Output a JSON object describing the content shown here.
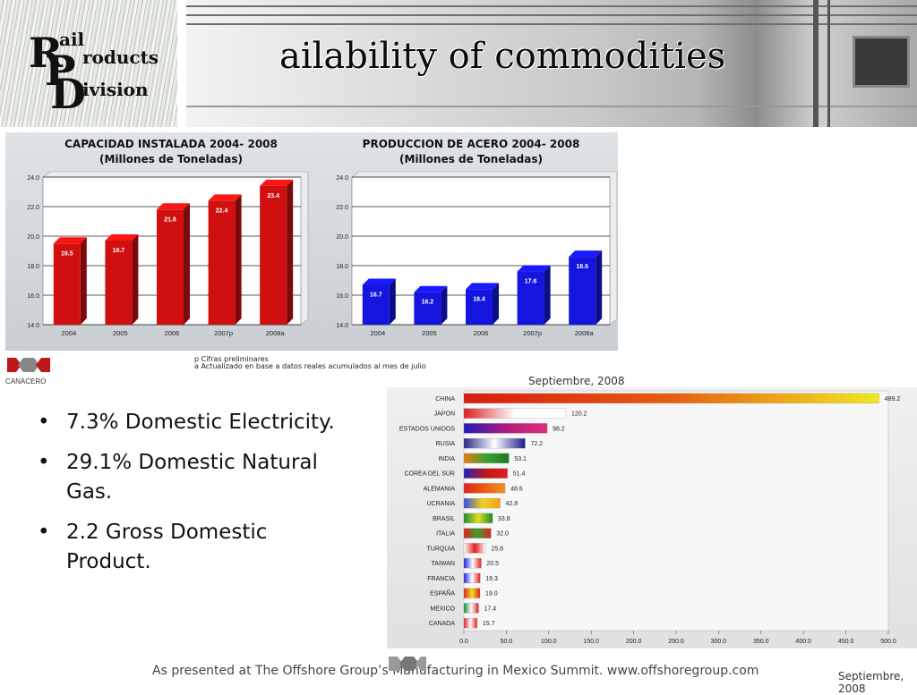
{
  "header": {
    "logo": {
      "r": "R",
      "ail": "ail",
      "p": "P",
      "roducts": "roducts",
      "d": "D",
      "ivision": "ivision"
    },
    "title": "ailability of commodities"
  },
  "bullets": [
    {
      "symbol": "•",
      "text": "7.3% Domestic Electricity."
    },
    {
      "symbol": "•",
      "text": "29.1% Domestic Natural Gas."
    },
    {
      "symbol": "•",
      "text": "2.2 Gross Domestic Product."
    }
  ],
  "top_notes": [
    "p  Cifras preliminares",
    "a  Actualizado en base a datos reales acumulados al mes de julio"
  ],
  "top_logo_label": "CANACERO",
  "right_date": "Septiembre, 2008",
  "footer": {
    "text": "As presented at The Offshore Group’s Manufacturing in Mexico Summit. www.offshoregroup.com",
    "date": "Septiembre, 2008"
  },
  "colors": {
    "red": "#d01010",
    "blue": "#1515e0",
    "panel": "#d5d9dc"
  },
  "chart_data": [
    {
      "type": "bar",
      "title": "CAPACIDAD INSTALADA 2004- 2008",
      "subtitle": "(Millones de Toneladas)",
      "categories": [
        "2004",
        "2005",
        "2006",
        "2007p",
        "2008a"
      ],
      "values": [
        19.5,
        19.7,
        21.8,
        22.4,
        23.4
      ],
      "value_labels": [
        "19.5",
        "19.7",
        "21.8",
        "22.4",
        "23.4"
      ],
      "ylim": [
        14.0,
        24.0
      ],
      "yticks": [
        "14.0",
        "16.0",
        "18.0",
        "20.0",
        "22.0",
        "24.0"
      ],
      "color": "#d01010",
      "grid": true
    },
    {
      "type": "bar",
      "title": "PRODUCCION DE ACERO 2004- 2008",
      "subtitle": "(Millones de Toneladas)",
      "categories": [
        "2004",
        "2005",
        "2006",
        "2007p",
        "2008a"
      ],
      "values": [
        16.7,
        16.2,
        16.4,
        17.6,
        18.6
      ],
      "value_labels": [
        "16.7",
        "16.2",
        "16.4",
        "17.6",
        "18.6"
      ],
      "ylim": [
        14.0,
        24.0
      ],
      "yticks": [
        "14.0",
        "16.0",
        "18.0",
        "20.0",
        "22.0",
        "24.0"
      ],
      "color": "#1515e0",
      "grid": true
    },
    {
      "type": "bar",
      "orientation": "horizontal",
      "categories": [
        "CHINA",
        "JAPON",
        "ESTADOS UNIDOS",
        "RUSIA",
        "INDIA",
        "COREA DEL SUR",
        "ALEMANIA",
        "UCRANIA",
        "BRASIL",
        "ITALIA",
        "TURQUIA",
        "TAIWAN",
        "FRANCIA",
        "ESPAÑA",
        "MEXICO",
        "CANADA"
      ],
      "values": [
        489.2,
        120.2,
        98.2,
        72.2,
        53.1,
        51.4,
        48.6,
        42.8,
        33.8,
        32.0,
        25.8,
        20.5,
        19.3,
        19.0,
        17.4,
        15.7
      ],
      "value_labels": [
        "489.2",
        "120.2",
        "98.2",
        "72.2",
        "53.1",
        "51.4",
        "48.6",
        "42.8",
        "33.8",
        "32.0",
        "25.8",
        "20.5",
        "19.3",
        "19.0",
        "17.4",
        "15.7"
      ],
      "xlim": [
        0,
        500
      ],
      "xticks": [
        "0.0",
        "50.0",
        "100.0",
        "150.0",
        "200.0",
        "250.0",
        "300.0",
        "350.0",
        "400.0",
        "450.0",
        "500.0"
      ],
      "grid": true
    }
  ]
}
